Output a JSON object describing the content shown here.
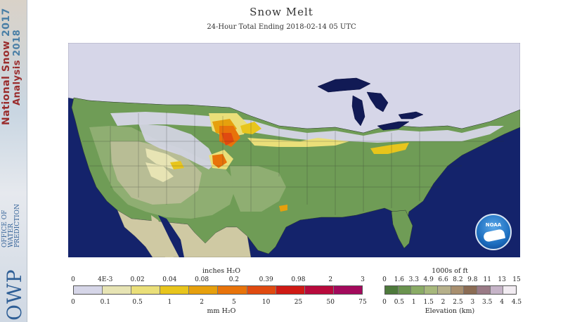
{
  "title": "Snow Melt",
  "subtitle": "24-Hour Total Ending 2018-02-14 05 UTC",
  "branding": {
    "nsa_line1": "National Snow",
    "nsa_line2": "Analysis",
    "nsa_year1": "2017",
    "nsa_year2": "2018",
    "owp": "OWP",
    "owp_line1": "OFFICE OF",
    "owp_line2": "WATER",
    "owp_line3": "PREDICTION",
    "noaa": "NOAA"
  },
  "colors": {
    "ocean": "#14236b",
    "ocean_outside": "#1a2a7a",
    "snow_none": "#d6d6e8",
    "low_elev": "#6f9c56",
    "mid_elev": "#8fae72",
    "high_elev": "#b8bd95",
    "mexico": "#cfc9a3",
    "lakes": "#111a55"
  },
  "melt_legend": {
    "title_top": "inches H₂O",
    "title_bottom": "mm H₂O",
    "inches_ticks": [
      "0",
      "4E-3",
      "0.02",
      "0.04",
      "0.08",
      "0.2",
      "0.39",
      "0.98",
      "2",
      "3"
    ],
    "mm_ticks": [
      "0",
      "0.1",
      "0.5",
      "1",
      "2",
      "5",
      "10",
      "25",
      "50",
      "75"
    ],
    "colors": [
      "#d6d6e8",
      "#e7e4b4",
      "#eadf79",
      "#e8c51c",
      "#e6a00d",
      "#e8730a",
      "#e04a10",
      "#cf1a14",
      "#b80a3c",
      "#a30a5c"
    ]
  },
  "elev_legend": {
    "title_top": "1000s of ft",
    "title_bottom": "Elevation (km)",
    "ft_ticks": [
      "0",
      "1.6",
      "3.3",
      "4.9",
      "6.6",
      "8.2",
      "9.8",
      "11",
      "13",
      "15"
    ],
    "km_ticks": [
      "0",
      "0.5",
      "1",
      "1.5",
      "2",
      "2.5",
      "3",
      "3.5",
      "4",
      "4.5"
    ],
    "colors": [
      "#4e7a3c",
      "#6b944f",
      "#8aab65",
      "#a7b87c",
      "#b6b08a",
      "#a88f6f",
      "#8b6c54",
      "#9a7a86",
      "#c6b4c8",
      "#f2ecf2"
    ]
  }
}
